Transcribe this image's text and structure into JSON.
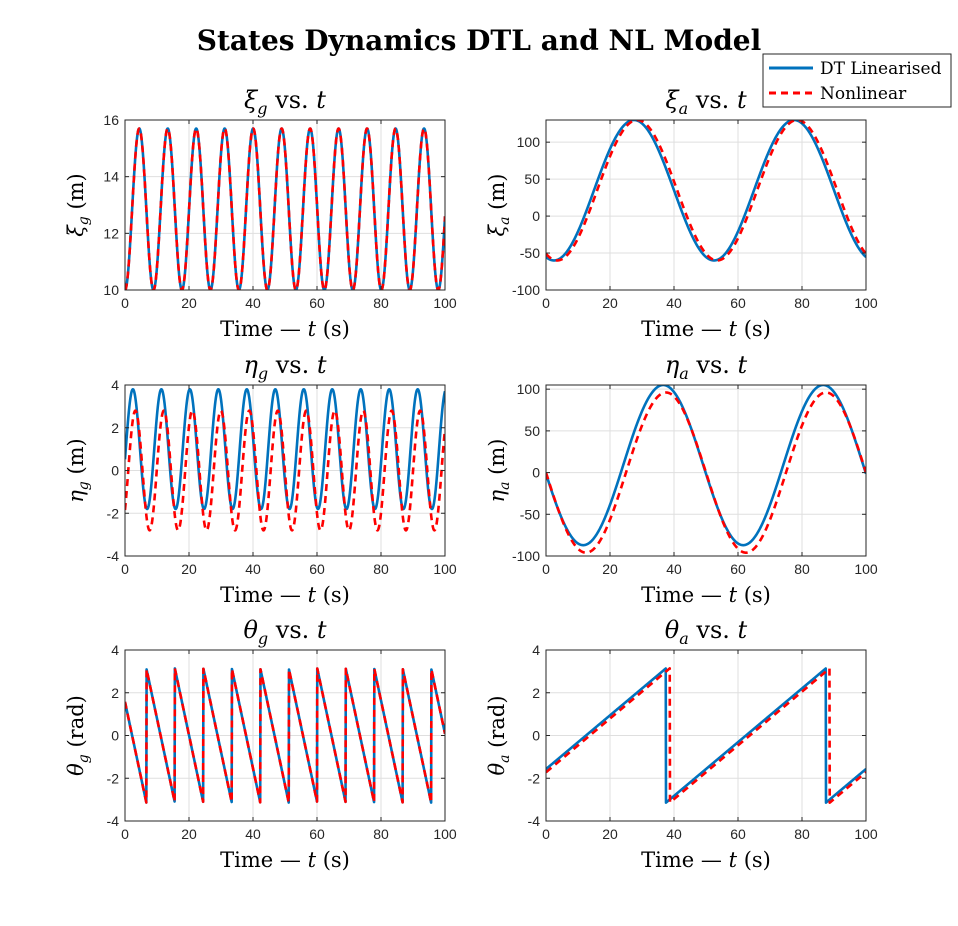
{
  "figure": {
    "title": "States Dynamics DTL and NL Model"
  },
  "legend": {
    "placement": "top-right",
    "entries": [
      {
        "label": "DT Linearised",
        "color": "#0072BD",
        "style": "solid"
      },
      {
        "label": "Nonlinear",
        "color": "#FF0000",
        "style": "dashed"
      }
    ]
  },
  "chart_data": [
    {
      "type": "line",
      "id": "xi_g",
      "title_sym": "ξ",
      "title_sub": "g",
      "title_rest": " vs. ",
      "title_var": "t",
      "ylabel_sym": "ξ",
      "ylabel_sub": "g",
      "ylabel_unit": " (m)",
      "xlabel_main": "Time — ",
      "xlabel_var": "t",
      "xlabel_unit": " (s)",
      "xlim": [
        0,
        100
      ],
      "ylim": [
        10,
        16
      ],
      "xticks": [
        0,
        20,
        40,
        60,
        80,
        100
      ],
      "yticks": [
        10,
        12,
        14,
        16
      ],
      "grid": true,
      "series": [
        {
          "name": "DT Linearised",
          "kind": "sin",
          "amp": 2.85,
          "off": 12.85,
          "period": 8.9,
          "phase": -1.5708
        },
        {
          "name": "Nonlinear",
          "kind": "sin",
          "amp": 2.85,
          "off": 12.85,
          "period": 8.9,
          "phase": -1.5708
        }
      ]
    },
    {
      "type": "line",
      "id": "xi_a",
      "title_sym": "ξ",
      "title_sub": "a",
      "title_rest": " vs. ",
      "title_var": "t",
      "ylabel_sym": "ξ",
      "ylabel_sub": "a",
      "ylabel_unit": " (m)",
      "xlabel_main": "Time — ",
      "xlabel_var": "t",
      "xlabel_unit": " (s)",
      "xlim": [
        0,
        100
      ],
      "ylim": [
        -100,
        130
      ],
      "xticks": [
        0,
        20,
        40,
        60,
        80,
        100
      ],
      "yticks": [
        -100,
        -50,
        0,
        50,
        100
      ],
      "grid": true,
      "series": [
        {
          "name": "DT Linearised",
          "kind": "sin",
          "amp": 95,
          "off": 35,
          "period": 50,
          "phase": -1.885
        },
        {
          "name": "Nonlinear",
          "kind": "sin",
          "amp": 95,
          "off": 35,
          "period": 50,
          "phase": -2.01
        }
      ]
    },
    {
      "type": "line",
      "id": "eta_g",
      "title_sym": "η",
      "title_sub": "g",
      "title_rest": " vs. ",
      "title_var": "t",
      "ylabel_sym": "η",
      "ylabel_sub": "g",
      "ylabel_unit": " (m)",
      "xlabel_main": "Time — ",
      "xlabel_var": "t",
      "xlabel_unit": " (s)",
      "xlim": [
        0,
        100
      ],
      "ylim": [
        -4,
        4
      ],
      "xticks": [
        0,
        20,
        40,
        60,
        80,
        100
      ],
      "yticks": [
        -4,
        -2,
        0,
        2,
        4
      ],
      "grid": true,
      "series": [
        {
          "name": "DT Linearised",
          "kind": "sin",
          "amp": 2.8,
          "off": 1.0,
          "period": 8.9,
          "phase": -0.17
        },
        {
          "name": "Nonlinear",
          "kind": "sin",
          "amp": 2.8,
          "off": 0.0,
          "period": 8.9,
          "phase": -0.72
        }
      ]
    },
    {
      "type": "line",
      "id": "eta_a",
      "title_sym": "η",
      "title_sub": "a",
      "title_rest": " vs. ",
      "title_var": "t",
      "ylabel_sym": "η",
      "ylabel_sub": "a",
      "ylabel_unit": " (m)",
      "xlabel_main": "Time — ",
      "xlabel_var": "t",
      "xlabel_unit": " (s)",
      "xlim": [
        0,
        100
      ],
      "ylim": [
        -100,
        105
      ],
      "xticks": [
        0,
        20,
        40,
        60,
        80,
        100
      ],
      "yticks": [
        -100,
        -50,
        0,
        50,
        100
      ],
      "grid": true,
      "series": [
        {
          "name": "DT Linearised",
          "kind": "sin",
          "amp": 96,
          "off": 9,
          "period": 50,
          "phase": 3.25
        },
        {
          "name": "Nonlinear",
          "kind": "sin",
          "amp": 96,
          "off": 0,
          "period": 50,
          "phase": 3.14159
        }
      ]
    },
    {
      "type": "line",
      "id": "theta_g",
      "title_sym": "θ",
      "title_sub": "g",
      "title_rest": " vs. ",
      "title_var": "t",
      "ylabel_sym": "θ",
      "ylabel_sub": "g",
      "ylabel_unit": " (rad)",
      "xlabel_main": "Time — ",
      "xlabel_var": "t",
      "xlabel_unit": " (s)",
      "xlim": [
        0,
        100
      ],
      "ylim": [
        -4,
        4
      ],
      "xticks": [
        0,
        20,
        40,
        60,
        80,
        100
      ],
      "yticks": [
        -4,
        -2,
        0,
        2,
        4
      ],
      "grid": true,
      "series": [
        {
          "name": "DT Linearised",
          "kind": "saw",
          "start": 1.5708,
          "rate": -0.706,
          "period": 8.9
        },
        {
          "name": "Nonlinear",
          "kind": "saw",
          "start": 1.5708,
          "rate": -0.706,
          "period": 8.9
        }
      ]
    },
    {
      "type": "line",
      "id": "theta_a",
      "title_sym": "θ",
      "title_sub": "a",
      "title_rest": " vs. ",
      "title_var": "t",
      "ylabel_sym": "θ",
      "ylabel_sub": "a",
      "ylabel_unit": " (rad)",
      "xlabel_main": "Time — ",
      "xlabel_var": "t",
      "xlabel_unit": " (s)",
      "xlim": [
        0,
        100
      ],
      "ylim": [
        -4,
        4
      ],
      "xticks": [
        0,
        20,
        40,
        60,
        80,
        100
      ],
      "yticks": [
        -4,
        -2,
        0,
        2,
        4
      ],
      "grid": true,
      "series": [
        {
          "name": "DT Linearised",
          "kind": "saw",
          "start": -1.5708,
          "rate": 0.1257,
          "period": 50
        },
        {
          "name": "Nonlinear",
          "kind": "saw",
          "start": -1.72,
          "rate": 0.1257,
          "period": 50
        }
      ]
    }
  ]
}
